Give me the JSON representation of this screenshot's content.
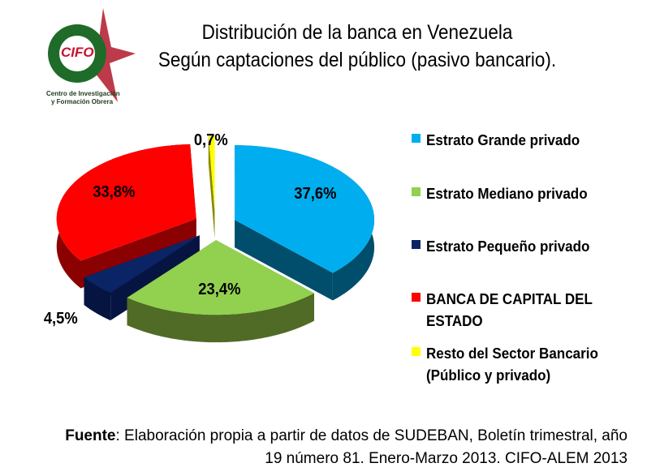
{
  "title_line1": "Distribución de la banca en Venezuela",
  "title_line2": "Según captaciones del público (pasivo bancario).",
  "logo": {
    "text": "CIFO",
    "subtitle1": "Centro de Investigación",
    "subtitle2": "y Formación Obrera"
  },
  "chart_data": {
    "type": "pie",
    "title": "Distribución de la banca en Venezuela — Según captaciones del público (pasivo bancario).",
    "legend_position": "right",
    "categories": [
      "Estrato Grande privado",
      "Estrato Mediano privado",
      "Estrato Pequeño privado",
      "BANCA DE CAPITAL DEL ESTADO",
      "Resto del Sector Bancario (Público y privado)"
    ],
    "values": [
      37.6,
      23.4,
      4.5,
      33.8,
      0.7
    ],
    "labels": [
      "37,6%",
      "23,4%",
      "4,5%",
      "33,8%",
      "0,7%"
    ],
    "colors": [
      "#00AEEF",
      "#92D050",
      "#0B2466",
      "#FF0000",
      "#FFFF00"
    ],
    "side_colors": [
      "#004E6B",
      "#4F6B25",
      "#061442",
      "#8B0000",
      "#8A8A00"
    ]
  },
  "source": {
    "label": "Fuente",
    "text": ": Elaboración propia a partir de datos de SUDEBAN, Boletín trimestral, año",
    "line2": "19 número 81. Enero-Marzo 2013. CIFO-ALEM 2013"
  }
}
